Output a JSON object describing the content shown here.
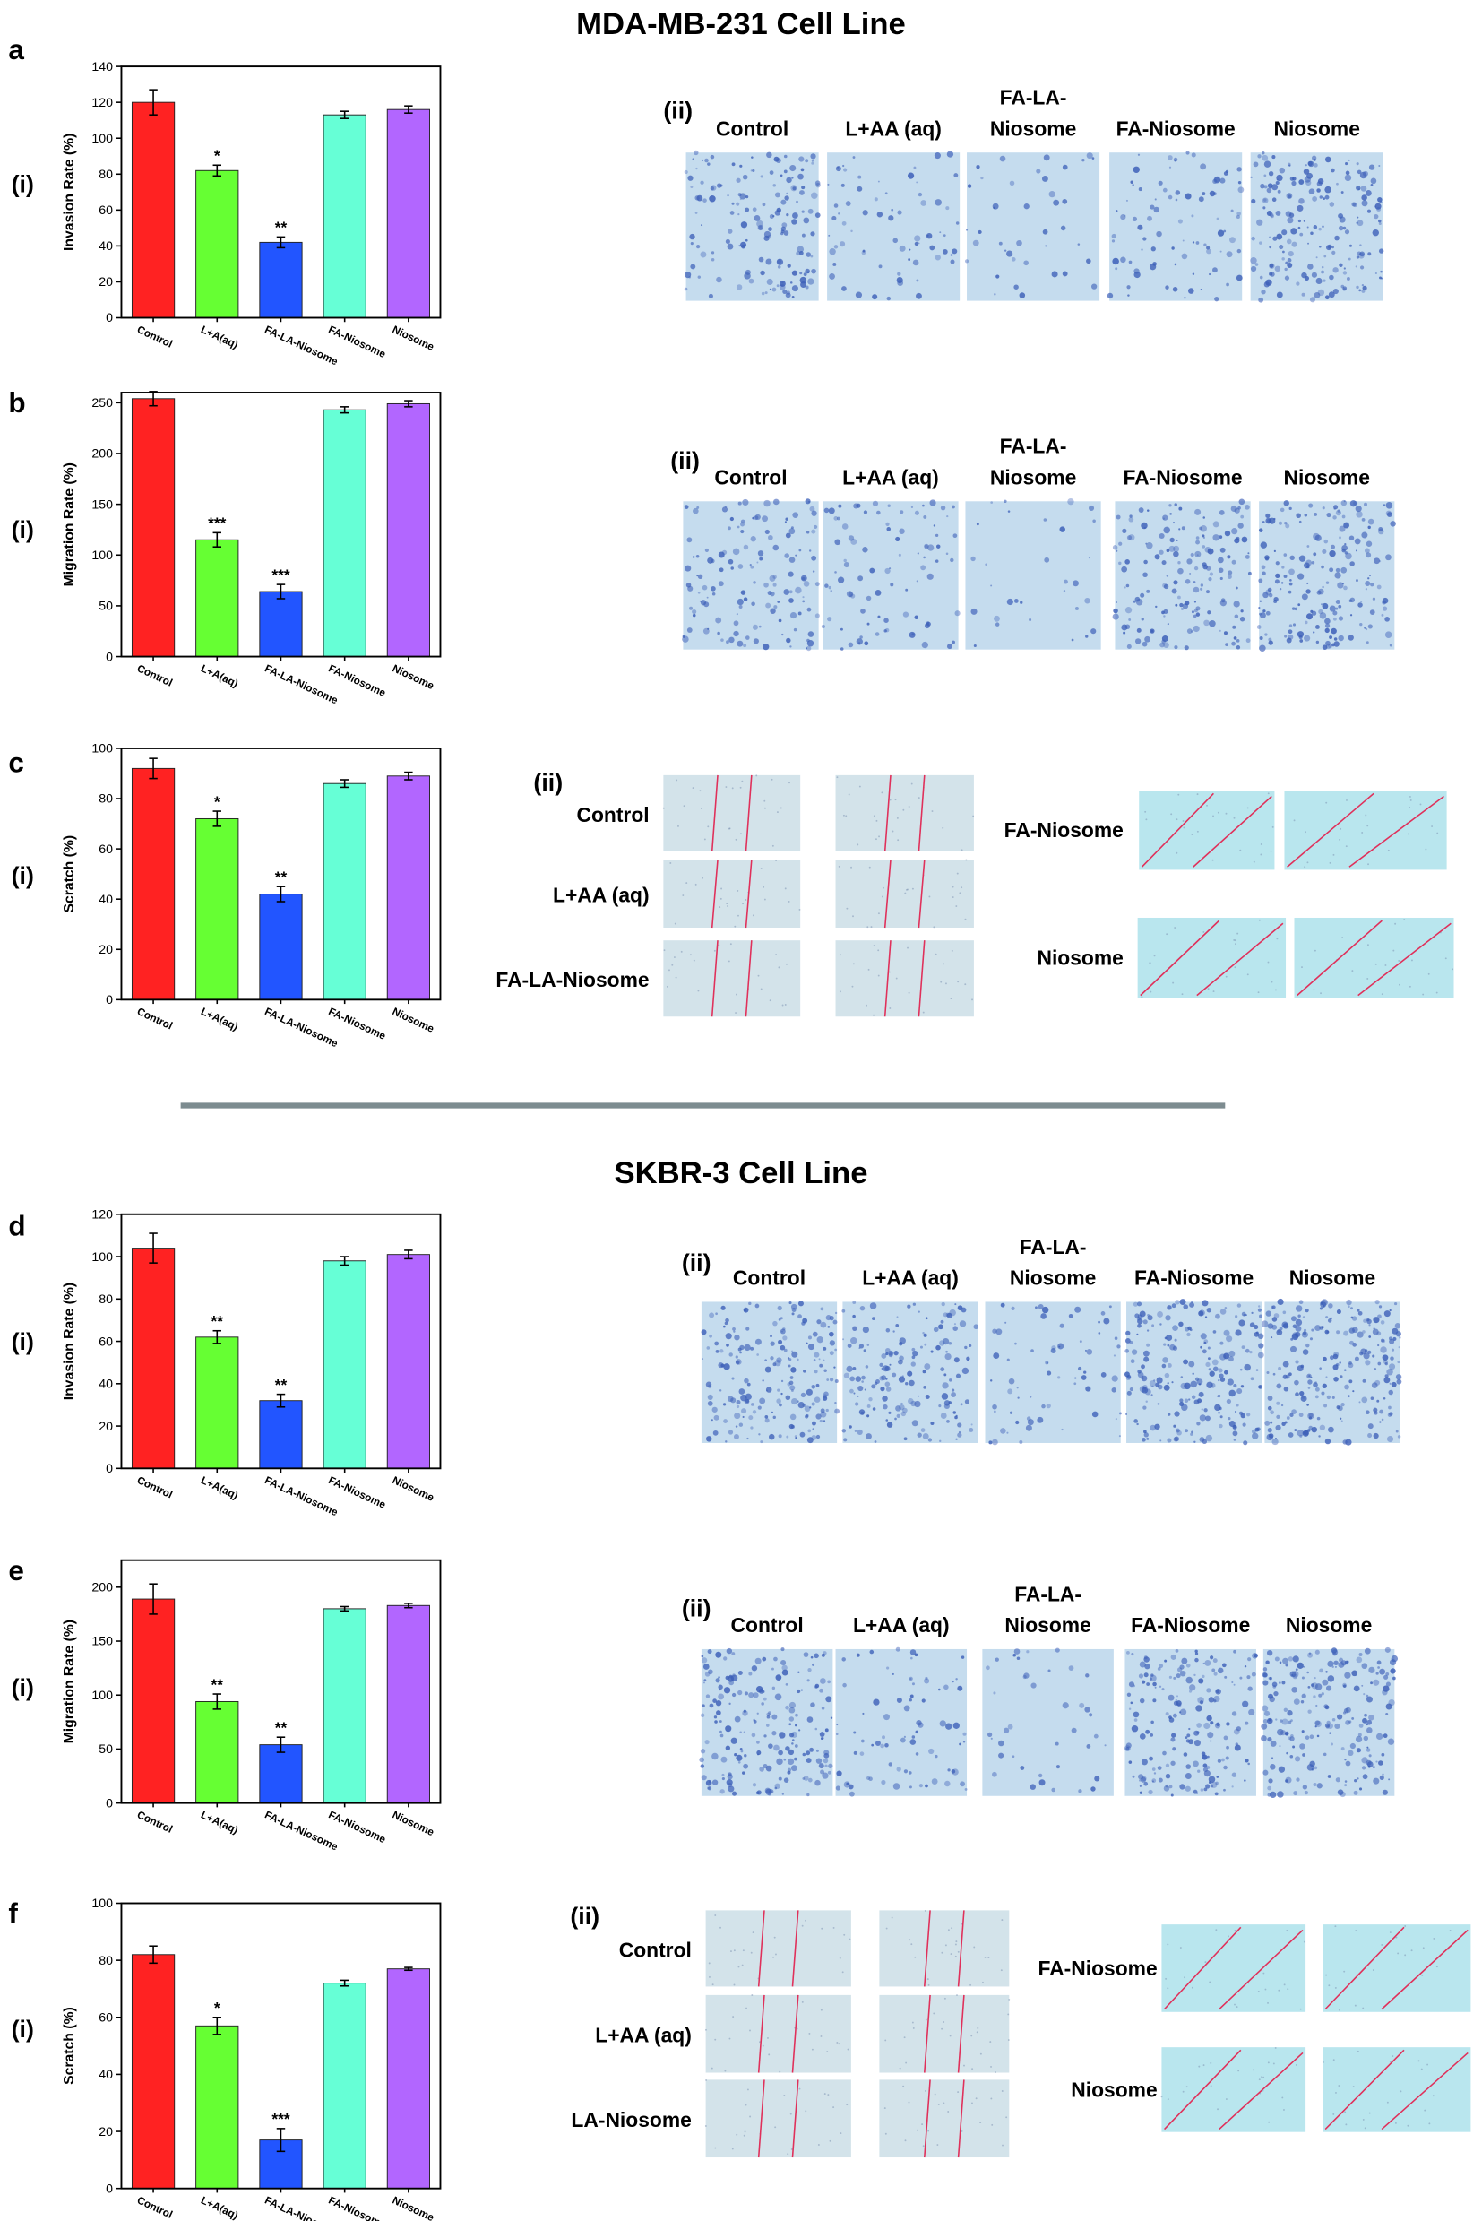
{
  "figure": {
    "titles": [
      "MDA-MB-231 Cell Line",
      "SKBR-3 Cell Line"
    ],
    "panels": [
      {
        "letter": "a",
        "left_label": "(i)",
        "right_label": "(ii)",
        "image_labels": [
          [
            "Control"
          ],
          [
            "L+AA (aq)"
          ],
          [
            "FA-LA-",
            "Niosome"
          ],
          [
            "FA-Niosome"
          ],
          [
            "Niosome"
          ]
        ]
      },
      {
        "letter": "b",
        "left_label": "(i)",
        "right_label": "(ii)",
        "image_labels": [
          [
            "Control"
          ],
          [
            "L+AA (aq)"
          ],
          [
            "FA-LA-",
            "Niosome"
          ],
          [
            "FA-Niosome"
          ],
          [
            "Niosome"
          ]
        ]
      },
      {
        "letter": "c",
        "left_label": "(i)",
        "right_label": "(ii)",
        "image_labels": [
          [
            "Control"
          ],
          [
            "L+AA (aq)"
          ],
          [
            "FA-LA-Niosome"
          ],
          [
            "FA-Niosome"
          ],
          [
            "Niosome"
          ]
        ]
      },
      {
        "letter": "d",
        "left_label": "(i)",
        "right_label": "(ii)",
        "image_labels": [
          [
            "Control"
          ],
          [
            "L+AA (aq)"
          ],
          [
            "FA-LA-",
            "Niosome"
          ],
          [
            "FA-Niosome"
          ],
          [
            "Niosome"
          ]
        ]
      },
      {
        "letter": "e",
        "left_label": "(i)",
        "right_label": "(ii)",
        "image_labels": [
          [
            "Control"
          ],
          [
            "L+AA (aq)"
          ],
          [
            "FA-LA-",
            "Niosome"
          ],
          [
            "FA-Niosome"
          ],
          [
            "Niosome"
          ]
        ]
      },
      {
        "letter": "f",
        "left_label": "(i)",
        "right_label": "(ii)",
        "image_labels": [
          [
            "Control"
          ],
          [
            "L+AA (aq)"
          ],
          [
            "LA-Niosome"
          ],
          [
            "FA-Niosome"
          ],
          [
            "Niosome"
          ]
        ]
      }
    ]
  },
  "chart_data": [
    {
      "type": "bar",
      "ylabel": "Invasion Rate (%)",
      "categories": [
        "Control",
        "L+A(aq)",
        "FA-LA-Niosome",
        "FA-Niosome",
        "Niosome"
      ],
      "values": [
        120,
        82,
        42,
        113,
        116
      ],
      "errors": [
        7,
        3,
        3,
        2,
        2
      ],
      "significance": [
        null,
        "*",
        "**",
        null,
        null
      ],
      "colors": [
        "#ff2222",
        "#66ff33",
        "#2255ff",
        "#66ffd6",
        "#b266ff"
      ],
      "ylim": [
        0,
        140
      ],
      "yticks": [
        0,
        20,
        40,
        60,
        80,
        100,
        120,
        140
      ]
    },
    {
      "type": "bar",
      "ylabel": "Migration Rate (%)",
      "categories": [
        "Control",
        "L+A(aq)",
        "FA-LA-Niosome",
        "FA-Niosome",
        "Niosome"
      ],
      "values": [
        254,
        115,
        64,
        243,
        249
      ],
      "errors": [
        7,
        7,
        7,
        3,
        3
      ],
      "significance": [
        null,
        "***",
        "***",
        null,
        null
      ],
      "colors": [
        "#ff2222",
        "#66ff33",
        "#2255ff",
        "#66ffd6",
        "#b266ff"
      ],
      "ylim": [
        0,
        260
      ],
      "yticks": [
        0,
        50,
        100,
        150,
        200,
        250
      ]
    },
    {
      "type": "bar",
      "ylabel": "Scratch (%)",
      "categories": [
        "Control",
        "L+A(aq)",
        "FA-LA-Niosome",
        "FA-Niosome",
        "Niosome"
      ],
      "values": [
        92,
        72,
        42,
        86,
        89
      ],
      "errors": [
        4,
        3,
        3,
        1.5,
        1.5
      ],
      "significance": [
        null,
        "*",
        "**",
        null,
        null
      ],
      "colors": [
        "#ff2222",
        "#66ff33",
        "#2255ff",
        "#66ffd6",
        "#b266ff"
      ],
      "ylim": [
        0,
        100
      ],
      "yticks": [
        0,
        20,
        40,
        60,
        80,
        100
      ]
    },
    {
      "type": "bar",
      "ylabel": "Invasion Rate (%)",
      "categories": [
        "Control",
        "L+A(aq)",
        "FA-LA-Niosome",
        "FA-Niosome",
        "Niosome"
      ],
      "values": [
        104,
        62,
        32,
        98,
        101
      ],
      "errors": [
        7,
        3,
        3,
        2,
        2
      ],
      "significance": [
        null,
        "**",
        "**",
        null,
        null
      ],
      "colors": [
        "#ff2222",
        "#66ff33",
        "#2255ff",
        "#66ffd6",
        "#b266ff"
      ],
      "ylim": [
        0,
        120
      ],
      "yticks": [
        0,
        20,
        40,
        60,
        80,
        100,
        120
      ]
    },
    {
      "type": "bar",
      "ylabel": "Migration Rate (%)",
      "categories": [
        "Control",
        "L+A(aq)",
        "FA-LA-Niosome",
        "FA-Niosome",
        "Niosome"
      ],
      "values": [
        189,
        94,
        54,
        180,
        183
      ],
      "errors": [
        14,
        7,
        7,
        2,
        2
      ],
      "significance": [
        null,
        "**",
        "**",
        null,
        null
      ],
      "colors": [
        "#ff2222",
        "#66ff33",
        "#2255ff",
        "#66ffd6",
        "#b266ff"
      ],
      "ylim": [
        0,
        225
      ],
      "yticks": [
        0,
        50,
        100,
        150,
        200
      ]
    },
    {
      "type": "bar",
      "ylabel": "Scratch (%)",
      "categories": [
        "Control",
        "L+A(aq)",
        "FA-LA-Niosome",
        "FA-Niosome",
        "Niosome"
      ],
      "values": [
        82,
        57,
        17,
        72,
        77
      ],
      "errors": [
        3,
        3,
        4,
        1,
        0.5
      ],
      "significance": [
        null,
        "*",
        "***",
        null,
        null
      ],
      "colors": [
        "#ff2222",
        "#66ff33",
        "#2255ff",
        "#66ffd6",
        "#b266ff"
      ],
      "ylim": [
        0,
        100
      ],
      "yticks": [
        0,
        20,
        40,
        60,
        80,
        100
      ]
    }
  ]
}
